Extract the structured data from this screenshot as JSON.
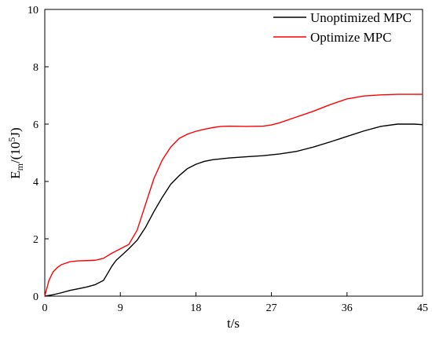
{
  "chart_data": {
    "type": "line",
    "xlabel": "t/s",
    "ylabel": {
      "base": "E",
      "sub": "m",
      "open": "/(10",
      "sup": "5",
      "close": "J)"
    },
    "xlim": [
      0,
      45
    ],
    "ylim": [
      0,
      10
    ],
    "xticks": [
      0,
      9,
      18,
      27,
      36,
      45
    ],
    "yticks": [
      0,
      2,
      4,
      6,
      8,
      10
    ],
    "grid": false,
    "legend_position": "top-right",
    "series": [
      {
        "name": "Unoptimized MPC",
        "color": "#000000",
        "x": [
          0,
          1,
          2,
          3,
          4,
          5,
          6,
          7,
          7.5,
          8,
          8.5,
          9,
          10,
          11,
          12,
          13,
          14,
          15,
          16,
          17,
          18,
          19,
          20,
          22,
          24,
          26,
          28,
          30,
          32,
          34,
          36,
          38,
          40,
          42,
          44,
          45
        ],
        "y": [
          0,
          0.05,
          0.12,
          0.2,
          0.26,
          0.32,
          0.4,
          0.55,
          0.8,
          1.05,
          1.25,
          1.38,
          1.65,
          1.95,
          2.4,
          2.95,
          3.45,
          3.9,
          4.2,
          4.45,
          4.6,
          4.7,
          4.76,
          4.82,
          4.86,
          4.9,
          4.96,
          5.05,
          5.2,
          5.38,
          5.57,
          5.76,
          5.92,
          6.0,
          6.0,
          5.98
        ]
      },
      {
        "name": "Optimize MPC",
        "color": "#ff0000",
        "x": [
          0,
          0.5,
          1,
          1.5,
          2,
          3,
          4,
          5,
          6,
          7,
          8,
          9,
          10,
          11,
          12,
          13,
          14,
          15,
          16,
          17,
          18,
          19,
          20,
          21,
          22,
          24,
          26,
          27,
          28,
          30,
          32,
          34,
          36,
          38,
          40,
          42,
          45
        ],
        "y": [
          0,
          0.55,
          0.85,
          1.0,
          1.1,
          1.2,
          1.23,
          1.24,
          1.25,
          1.32,
          1.5,
          1.65,
          1.8,
          2.3,
          3.2,
          4.1,
          4.75,
          5.2,
          5.5,
          5.65,
          5.75,
          5.82,
          5.88,
          5.92,
          5.93,
          5.92,
          5.93,
          5.97,
          6.05,
          6.25,
          6.45,
          6.68,
          6.88,
          6.98,
          7.02,
          7.04,
          7.04
        ]
      }
    ]
  }
}
